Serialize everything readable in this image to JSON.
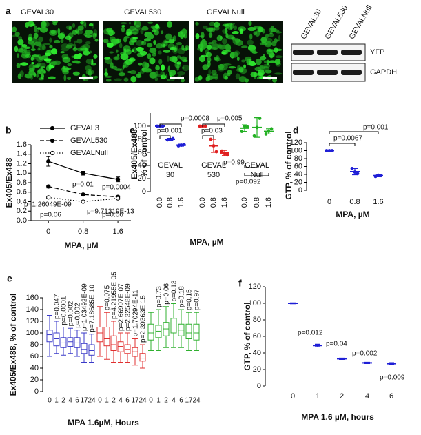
{
  "panel_a": {
    "label": "a",
    "images": [
      "GEVAL30",
      "GEVAL530",
      "GEVALNull"
    ],
    "blot": {
      "lanes": [
        "GEVAL30",
        "GEVAL530",
        "GEVALNull"
      ],
      "rows": [
        "YFP",
        "GAPDH"
      ]
    }
  },
  "chart_data": [
    {
      "type": "line",
      "label": "b",
      "xlabel": "MPA, µM",
      "ylabel": "Ex405/Ex488",
      "x": [
        0,
        0.8,
        1.6
      ],
      "xlim": [
        -0.4,
        1.9
      ],
      "xticks": [
        0,
        0.8,
        1.6
      ],
      "ylim": [
        0,
        1.6
      ],
      "yticks": [
        {
          "value": 0,
          "label": "0.0"
        },
        0.2,
        0.4,
        0.6,
        0.8,
        {
          "value": 1,
          "label": "1.0"
        },
        1.2,
        1.4,
        1.6
      ],
      "series": [
        {
          "name": "GEVAL3",
          "color": "#000000",
          "style": "solid",
          "values": [
            1.25,
            1.0,
            0.87
          ],
          "errors": [
            0.1,
            0.04,
            0.05
          ]
        },
        {
          "name": "GEVAL530",
          "color": "#000000",
          "style": "dashed",
          "values": [
            0.72,
            0.55,
            0.5
          ],
          "errors": [
            0.03,
            0.02,
            0.02
          ]
        },
        {
          "name": "GEVALNull",
          "color": "#000000",
          "style": "dotted",
          "values": [
            0.49,
            0.4,
            0.47
          ],
          "errors": [
            0.02,
            0.02,
            0.02
          ]
        }
      ],
      "annotations": [
        "p=0.01",
        "p=0.0004",
        "p=1.26049E-09",
        "p=9.71319E-13",
        "p=0.06",
        "p=0.06"
      ]
    },
    {
      "type": "dot",
      "label": "c",
      "xlabel": "MPA, µM",
      "ylabel": [
        "Ex405/Ex488,",
        "% of control"
      ],
      "ylim": [
        0,
        120
      ],
      "yticks": [
        0,
        20,
        40,
        60,
        80,
        100
      ],
      "groups": [
        {
          "name": [
            "GEVAL",
            "30"
          ],
          "color": "#1f1fd6",
          "categories": [
            "0.0",
            "0.8",
            "1.6"
          ],
          "values": [
            100,
            80,
            71
          ],
          "errors": [
            0.5,
            1.5,
            1.5
          ],
          "points": [
            [
              100,
              100,
              100
            ],
            [
              79,
              80,
              81
            ],
            [
              70,
              71,
              72
            ]
          ]
        },
        {
          "name": [
            "GEVAL",
            "530"
          ],
          "color": "#e02020",
          "categories": [
            "0.0",
            "0.8",
            "1.6"
          ],
          "values": [
            100,
            70,
            59
          ],
          "errors": [
            1,
            10,
            4
          ],
          "points": [
            [
              100,
              100,
              100
            ],
            [
              80,
              70,
              61
            ],
            [
              62,
              58,
              56
            ]
          ]
        },
        {
          "name": [
            "GEVAL",
            "Null"
          ],
          "color": "#22b022",
          "categories": [
            "0.0",
            "0.8",
            "1.6"
          ],
          "values": [
            97,
            98,
            92
          ],
          "errors": [
            5,
            15,
            4
          ],
          "points": [
            [
              92,
              100,
              99
            ],
            [
              85,
              98,
              112
            ],
            [
              88,
              92,
              96
            ]
          ]
        }
      ],
      "annotations": [
        "p=0.001",
        "p=0.0008",
        "p=0.03",
        "p=0.005",
        "p=0.99",
        "p=0.092"
      ]
    },
    {
      "type": "dot",
      "label": "d",
      "xlabel": "MPA, µM",
      "ylabel": "GTP, % of control",
      "ylim": [
        0,
        120
      ],
      "yticks": [
        0,
        20,
        40,
        60,
        80,
        100,
        120
      ],
      "groups": [
        {
          "color": "#1f1fd6",
          "categories": [
            "0",
            "0.8",
            "1.6"
          ],
          "values": [
            100,
            47,
            37
          ],
          "errors": [
            1,
            8,
            3
          ],
          "points": [
            [
              100,
              100,
              100
            ],
            [
              55,
              46,
              42
            ],
            [
              35,
              38,
              37
            ]
          ]
        }
      ],
      "annotations": [
        "p=0.0067",
        "p=0.001"
      ]
    },
    {
      "type": "box",
      "label": "e",
      "xlabel": "MPA 1.6µM, Hours",
      "ylabel": "Ex405/Ex488, % of control",
      "ylim": [
        0,
        160
      ],
      "yticks": [
        0,
        20,
        40,
        60,
        80,
        100,
        120,
        140,
        160
      ],
      "groups": [
        {
          "color": "#3a3ac8",
          "categories": [
            "0",
            "1",
            "2",
            "4",
            "6",
            "17",
            "24"
          ],
          "boxes": [
            [
              60,
              85,
              97,
              105,
              130
            ],
            [
              65,
              78,
              90,
              100,
              120
            ],
            [
              62,
              75,
              83,
              92,
              110
            ],
            [
              65,
              77,
              85,
              92,
              108
            ],
            [
              60,
              75,
              83,
              92,
              105
            ],
            [
              50,
              65,
              72,
              82,
              100
            ],
            [
              50,
              62,
              70,
              80,
              98
            ]
          ],
          "annotations": [
            "p=0.047",
            "p=0.0001",
            "p=0.002",
            "p=0.002",
            "p=1.03492E-09",
            "p=7.18685E-10"
          ]
        },
        {
          "color": "#e03030",
          "categories": [
            "0",
            "1",
            "2",
            "4",
            "6",
            "17",
            "24"
          ],
          "boxes": [
            [
              60,
              85,
              100,
              110,
              145
            ],
            [
              55,
              78,
              90,
              110,
              135
            ],
            [
              50,
              70,
              80,
              95,
              120
            ],
            [
              50,
              68,
              77,
              85,
              100
            ],
            [
              50,
              65,
              72,
              80,
              100
            ],
            [
              45,
              60,
              68,
              75,
              90
            ],
            [
              40,
              52,
              57,
              65,
              80
            ]
          ],
          "annotations": [
            "p=0.075",
            "p=4.21955E-05",
            "p=2.66997E-07",
            "p=2.32548E-09",
            "p=1.70294E-11",
            "p=2.39363E-15"
          ]
        },
        {
          "color": "#30b030",
          "categories": [
            "0",
            "1",
            "2",
            "4",
            "6",
            "17",
            "24"
          ],
          "boxes": [
            [
              70,
              88,
              100,
              115,
              135
            ],
            [
              70,
              92,
              103,
              113,
              140
            ],
            [
              75,
              95,
              107,
              118,
              145
            ],
            [
              75,
              100,
              110,
              125,
              150
            ],
            [
              75,
              95,
              105,
              115,
              140
            ],
            [
              70,
              90,
              100,
              115,
              135
            ],
            [
              70,
              88,
              100,
              115,
              135
            ]
          ],
          "annotations": [
            "p=0.73",
            "p=0.06",
            "p=0.13",
            "p=0.18",
            "p=0.15",
            "p=0.97"
          ]
        }
      ]
    },
    {
      "type": "dot",
      "label": "f",
      "xlabel": "MPA 1.6 µM, hours",
      "ylabel": "GTP, % of control",
      "ylim": [
        0,
        120
      ],
      "yticks": [
        0,
        20,
        40,
        60,
        80,
        100,
        120
      ],
      "groups": [
        {
          "color": "#1f1fd6",
          "categories": [
            "0",
            "1",
            "2",
            "4",
            "6"
          ],
          "values": [
            100,
            49,
            33,
            28,
            27
          ],
          "errors": [
            0.5,
            1.5,
            0.8,
            0.8,
            1.2
          ]
        }
      ],
      "annotations": [
        "p=0.012",
        "p=0.04",
        "p=0.002",
        "p=0.009"
      ]
    }
  ]
}
